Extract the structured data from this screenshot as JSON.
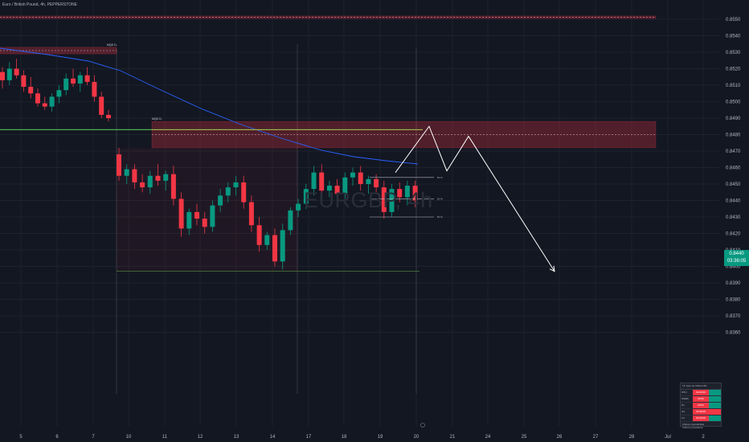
{
  "instrument_title": "Euro / British Pound, 4h, PEPPERSTONE",
  "watermark": "EURGBP, 4h",
  "price_tag": {
    "price": "0.8440",
    "countdown": "03:36:05",
    "color": "#089981"
  },
  "colors": {
    "up": "#089981",
    "down": "#f23645",
    "zone": "#f23645",
    "ma": "#2962ff",
    "support_line": "#4caf50",
    "projection": "#ffffff"
  },
  "chart_data": {
    "type": "candlestick",
    "timeframe": "4h",
    "ylim": [
      0.8357,
      0.8563
    ],
    "y_ticks": [
      "0.8550",
      "0.8540",
      "0.8530",
      "0.8520",
      "0.8510",
      "0.8500",
      "0.8490",
      "0.8480",
      "0.8470",
      "0.8460",
      "0.8450",
      "0.8440",
      "0.8430",
      "0.8420",
      "0.8410",
      "0.8400",
      "0.8390",
      "0.8380",
      "0.8370",
      "0.8360"
    ],
    "x_ticks": [
      "5",
      "6",
      "7",
      "10",
      "11",
      "12",
      "13",
      "14",
      "17",
      "18",
      "19",
      "20",
      "21",
      "24",
      "25",
      "26",
      "27",
      "28",
      "Jul",
      "2"
    ],
    "supply_zones": [
      {
        "label": "",
        "top": 0.8552,
        "bottom": 0.8551
      },
      {
        "label": "MQD D-",
        "top": 0.8533,
        "bottom": 0.8529
      },
      {
        "label": "MQD D-",
        "top": 0.8488,
        "bottom": 0.8472
      }
    ],
    "horizontal_lines": [
      {
        "price": 0.8483,
        "role": "support"
      },
      {
        "price": 0.8397,
        "role": "low"
      }
    ],
    "range_labels": [
      "50 %",
      "50 %",
      "50 %"
    ],
    "projection_path": [
      0.8457,
      0.8485,
      0.8458,
      0.8479,
      0.8397
    ],
    "candles": [
      {
        "o": 0.8518,
        "h": 0.8521,
        "l": 0.8508,
        "c": 0.8513
      },
      {
        "o": 0.8513,
        "h": 0.8524,
        "l": 0.851,
        "c": 0.852
      },
      {
        "o": 0.852,
        "h": 0.8526,
        "l": 0.8514,
        "c": 0.8516
      },
      {
        "o": 0.8516,
        "h": 0.8519,
        "l": 0.8506,
        "c": 0.8509
      },
      {
        "o": 0.8509,
        "h": 0.8515,
        "l": 0.8502,
        "c": 0.8505
      },
      {
        "o": 0.8505,
        "h": 0.8508,
        "l": 0.8497,
        "c": 0.8499
      },
      {
        "o": 0.8499,
        "h": 0.8503,
        "l": 0.8495,
        "c": 0.8497
      },
      {
        "o": 0.8497,
        "h": 0.8505,
        "l": 0.8494,
        "c": 0.8503
      },
      {
        "o": 0.8503,
        "h": 0.851,
        "l": 0.8499,
        "c": 0.8507
      },
      {
        "o": 0.8507,
        "h": 0.8517,
        "l": 0.8504,
        "c": 0.8514
      },
      {
        "o": 0.8514,
        "h": 0.852,
        "l": 0.8509,
        "c": 0.8511
      },
      {
        "o": 0.8511,
        "h": 0.8518,
        "l": 0.8506,
        "c": 0.8516
      },
      {
        "o": 0.8516,
        "h": 0.8521,
        "l": 0.851,
        "c": 0.8512
      },
      {
        "o": 0.8512,
        "h": 0.8516,
        "l": 0.85,
        "c": 0.8503
      },
      {
        "o": 0.8503,
        "h": 0.8506,
        "l": 0.849,
        "c": 0.8492
      },
      {
        "o": 0.8492,
        "h": 0.8495,
        "l": 0.8488,
        "c": 0.849
      },
      {
        "o": 0.8468,
        "h": 0.8472,
        "l": 0.8452,
        "c": 0.8455
      },
      {
        "o": 0.8455,
        "h": 0.8462,
        "l": 0.845,
        "c": 0.8459
      },
      {
        "o": 0.8459,
        "h": 0.8462,
        "l": 0.8447,
        "c": 0.8451
      },
      {
        "o": 0.8451,
        "h": 0.8456,
        "l": 0.8445,
        "c": 0.8448
      },
      {
        "o": 0.8448,
        "h": 0.8458,
        "l": 0.8444,
        "c": 0.8455
      },
      {
        "o": 0.8455,
        "h": 0.8462,
        "l": 0.8449,
        "c": 0.8452
      },
      {
        "o": 0.8452,
        "h": 0.8458,
        "l": 0.8446,
        "c": 0.8456
      },
      {
        "o": 0.8456,
        "h": 0.8461,
        "l": 0.8437,
        "c": 0.8441
      },
      {
        "o": 0.8441,
        "h": 0.8445,
        "l": 0.8418,
        "c": 0.8423
      },
      {
        "o": 0.8423,
        "h": 0.8435,
        "l": 0.8419,
        "c": 0.8433
      },
      {
        "o": 0.8433,
        "h": 0.8438,
        "l": 0.8425,
        "c": 0.8429
      },
      {
        "o": 0.8429,
        "h": 0.8433,
        "l": 0.842,
        "c": 0.8424
      },
      {
        "o": 0.8424,
        "h": 0.844,
        "l": 0.8421,
        "c": 0.8437
      },
      {
        "o": 0.8437,
        "h": 0.8447,
        "l": 0.8433,
        "c": 0.8443
      },
      {
        "o": 0.8443,
        "h": 0.8451,
        "l": 0.8439,
        "c": 0.8448
      },
      {
        "o": 0.8448,
        "h": 0.8455,
        "l": 0.8443,
        "c": 0.8451
      },
      {
        "o": 0.8451,
        "h": 0.8455,
        "l": 0.8435,
        "c": 0.8439
      },
      {
        "o": 0.8439,
        "h": 0.8443,
        "l": 0.8421,
        "c": 0.8425
      },
      {
        "o": 0.8425,
        "h": 0.843,
        "l": 0.8409,
        "c": 0.8413
      },
      {
        "o": 0.8413,
        "h": 0.8421,
        "l": 0.841,
        "c": 0.8419
      },
      {
        "o": 0.8419,
        "h": 0.8423,
        "l": 0.84,
        "c": 0.8403
      },
      {
        "o": 0.8403,
        "h": 0.8426,
        "l": 0.8398,
        "c": 0.8422
      },
      {
        "o": 0.8422,
        "h": 0.8436,
        "l": 0.8419,
        "c": 0.8434
      },
      {
        "o": 0.8434,
        "h": 0.8441,
        "l": 0.843,
        "c": 0.8438
      },
      {
        "o": 0.8438,
        "h": 0.845,
        "l": 0.8435,
        "c": 0.8447
      },
      {
        "o": 0.8447,
        "h": 0.8461,
        "l": 0.8443,
        "c": 0.8457
      },
      {
        "o": 0.8457,
        "h": 0.8462,
        "l": 0.8443,
        "c": 0.8446
      },
      {
        "o": 0.8446,
        "h": 0.8452,
        "l": 0.8442,
        "c": 0.8449
      },
      {
        "o": 0.8449,
        "h": 0.8453,
        "l": 0.8441,
        "c": 0.8444
      },
      {
        "o": 0.8444,
        "h": 0.8457,
        "l": 0.8441,
        "c": 0.8454
      },
      {
        "o": 0.8454,
        "h": 0.846,
        "l": 0.8449,
        "c": 0.8457
      },
      {
        "o": 0.8457,
        "h": 0.8461,
        "l": 0.8446,
        "c": 0.845
      },
      {
        "o": 0.845,
        "h": 0.8455,
        "l": 0.8444,
        "c": 0.8453
      },
      {
        "o": 0.8453,
        "h": 0.8456,
        "l": 0.8445,
        "c": 0.8448
      },
      {
        "o": 0.8448,
        "h": 0.8452,
        "l": 0.8429,
        "c": 0.8433
      },
      {
        "o": 0.8433,
        "h": 0.845,
        "l": 0.843,
        "c": 0.8447
      },
      {
        "o": 0.8447,
        "h": 0.8451,
        "l": 0.8439,
        "c": 0.8442
      },
      {
        "o": 0.8442,
        "h": 0.8452,
        "l": 0.8437,
        "c": 0.8449
      },
      {
        "o": 0.8449,
        "h": 0.8452,
        "l": 0.8436,
        "c": 0.844
      }
    ]
  },
  "info_table": {
    "header": [
      "TF",
      "Type de Clôture",
      "BC"
    ],
    "rows": [
      {
        "tf": "MTH",
        "value": "01:00:00"
      },
      {
        "tf": "WEEK",
        "value": "00:00"
      },
      {
        "tf": "D1",
        "value": "00:00"
      },
      {
        "tf": "4H",
        "value": "03:36:05"
      },
      {
        "tf": "1H",
        "value": "01:00:00"
      }
    ],
    "footer": [
      "Clôture imprédictible",
      "Clôture précédente"
    ]
  }
}
